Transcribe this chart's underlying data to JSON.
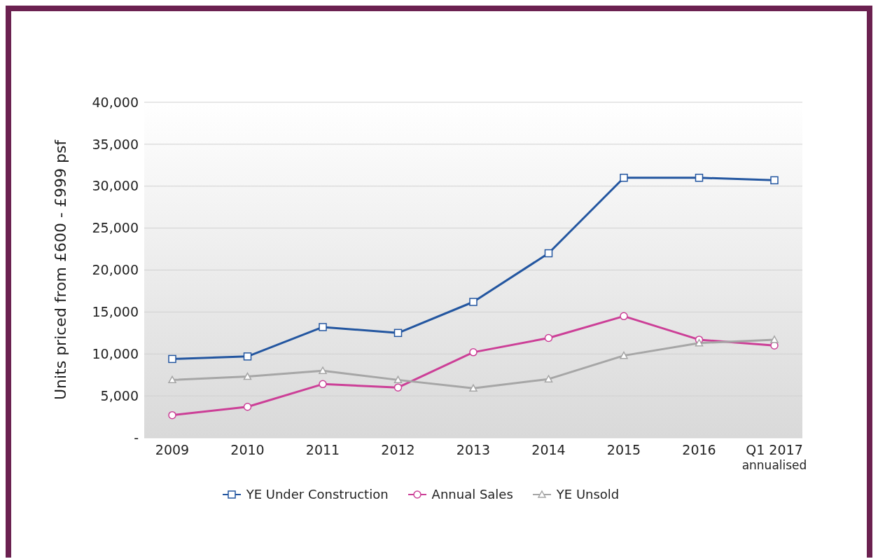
{
  "chart_data": {
    "type": "line",
    "ylabel": "Units priced from £600 - £999 psf",
    "categories": [
      "2009",
      "2010",
      "2011",
      "2012",
      "2013",
      "2014",
      "2015",
      "2016",
      "Q1 2017\nannualised"
    ],
    "series": [
      {
        "name": "YE Under Construction",
        "color": "#2356a0",
        "marker": "square",
        "values": [
          9400,
          9700,
          13200,
          12500,
          16200,
          22000,
          31000,
          31000,
          30700
        ]
      },
      {
        "name": "Annual Sales",
        "color": "#cc3f97",
        "marker": "circle",
        "values": [
          2700,
          3700,
          6400,
          6000,
          10200,
          11900,
          14500,
          11700,
          11000
        ]
      },
      {
        "name": "YE Unsold",
        "color": "#a6a6a6",
        "marker": "triangle",
        "values": [
          6900,
          7300,
          8000,
          6900,
          5900,
          7000,
          9800,
          11300,
          11700
        ]
      }
    ],
    "ylim": [
      0,
      40000
    ],
    "yticks": [
      {
        "value": 0,
        "label": "-"
      },
      {
        "value": 5000,
        "label": "5,000"
      },
      {
        "value": 10000,
        "label": "10,000"
      },
      {
        "value": 15000,
        "label": "15,000"
      },
      {
        "value": 20000,
        "label": "20,000"
      },
      {
        "value": 25000,
        "label": "25,000"
      },
      {
        "value": 30000,
        "label": "30,000"
      },
      {
        "value": 35000,
        "label": "35,000"
      },
      {
        "value": 40000,
        "label": "40,000"
      }
    ],
    "grid": "y",
    "legend": "bottom",
    "line_style": "solid"
  }
}
